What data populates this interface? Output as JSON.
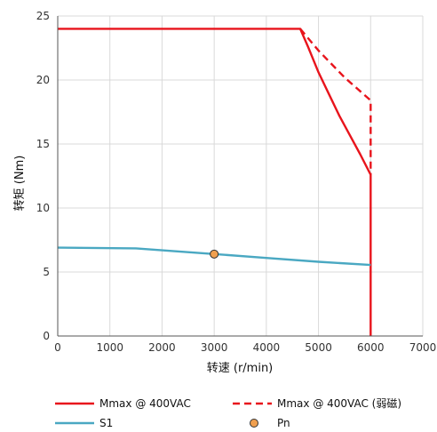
{
  "chart_data": {
    "type": "line",
    "xlabel": "转速 (r/min)",
    "ylabel": "转矩 (Nm)",
    "xlim": [
      0,
      7000
    ],
    "ylim": [
      0,
      25
    ],
    "xticks": [
      0,
      1000,
      2000,
      3000,
      4000,
      5000,
      6000,
      7000
    ],
    "yticks": [
      0,
      5,
      10,
      15,
      20,
      25
    ],
    "x_tick_labels": [
      "0",
      "1000",
      "2000",
      "3000",
      "4000",
      "5000",
      "6000",
      "7000"
    ],
    "y_tick_labels": [
      "0",
      "5",
      "10",
      "15",
      "20",
      "25"
    ],
    "grid": true,
    "legend_position": "bottom",
    "series": [
      {
        "name": "Mmax @ 400VAC",
        "color": "#e8141c",
        "style": "solid",
        "x": [
          0,
          4650,
          4800,
          5000,
          5200,
          5400,
          5600,
          5800,
          6000,
          6000
        ],
        "y": [
          24,
          24,
          22.6,
          20.6,
          18.9,
          17.2,
          15.7,
          14.2,
          12.6,
          0
        ]
      },
      {
        "name": "Mmax @ 400VAC (弱磁)",
        "color": "#e8141c",
        "style": "dashed",
        "x": [
          4650,
          5000,
          5500,
          6000,
          6000
        ],
        "y": [
          24,
          22.3,
          20.2,
          18.4,
          12.6
        ]
      },
      {
        "name": "S1",
        "color": "#4aa8c2",
        "style": "solid",
        "x": [
          0,
          1500,
          3000,
          4000,
          5000,
          6000
        ],
        "y": [
          6.9,
          6.85,
          6.4,
          6.1,
          5.8,
          5.55
        ]
      },
      {
        "name": "Pn",
        "color": "#f0a050",
        "style": "marker",
        "x": [
          3000
        ],
        "y": [
          6.4
        ]
      }
    ]
  }
}
